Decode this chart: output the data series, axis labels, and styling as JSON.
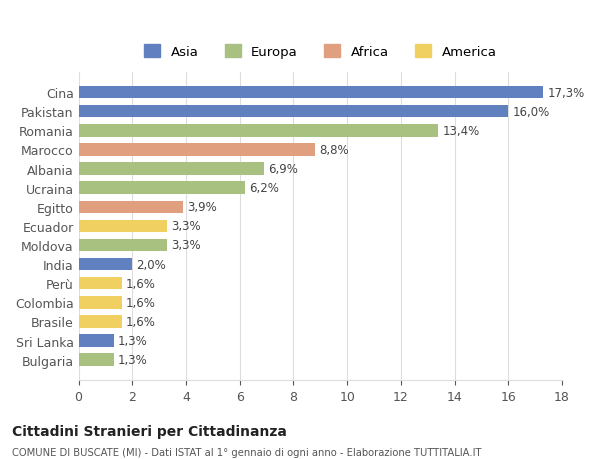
{
  "categories": [
    "Cina",
    "Pakistan",
    "Romania",
    "Marocco",
    "Albania",
    "Ucraina",
    "Egitto",
    "Ecuador",
    "Moldova",
    "India",
    "Perù",
    "Colombia",
    "Brasile",
    "Sri Lanka",
    "Bulgaria"
  ],
  "values": [
    17.3,
    16.0,
    13.4,
    8.8,
    6.9,
    6.2,
    3.9,
    3.3,
    3.3,
    2.0,
    1.6,
    1.6,
    1.6,
    1.3,
    1.3
  ],
  "labels": [
    "17,3%",
    "16,0%",
    "13,4%",
    "8,8%",
    "6,9%",
    "6,2%",
    "3,9%",
    "3,3%",
    "3,3%",
    "2,0%",
    "1,6%",
    "1,6%",
    "1,6%",
    "1,3%",
    "1,3%"
  ],
  "continents": [
    "Asia",
    "Asia",
    "Europa",
    "Africa",
    "Europa",
    "Europa",
    "Africa",
    "America",
    "Europa",
    "Asia",
    "America",
    "America",
    "America",
    "Asia",
    "Europa"
  ],
  "colors": {
    "Asia": "#6080c0",
    "Europa": "#a8c080",
    "Africa": "#e0a080",
    "America": "#f0d060"
  },
  "legend_labels": [
    "Asia",
    "Europa",
    "Africa",
    "America"
  ],
  "legend_colors": [
    "#6080c0",
    "#a8c080",
    "#e0a080",
    "#f0d060"
  ],
  "title": "Cittadini Stranieri per Cittadinanza",
  "subtitle": "COMUNE DI BUSCATE (MI) - Dati ISTAT al 1° gennaio di ogni anno - Elaborazione TUTTITALIA.IT",
  "xlim": [
    0,
    18
  ],
  "xticks": [
    0,
    2,
    4,
    6,
    8,
    10,
    12,
    14,
    16,
    18
  ],
  "background_color": "#ffffff",
  "grid_color": "#dddddd",
  "bar_height": 0.65
}
